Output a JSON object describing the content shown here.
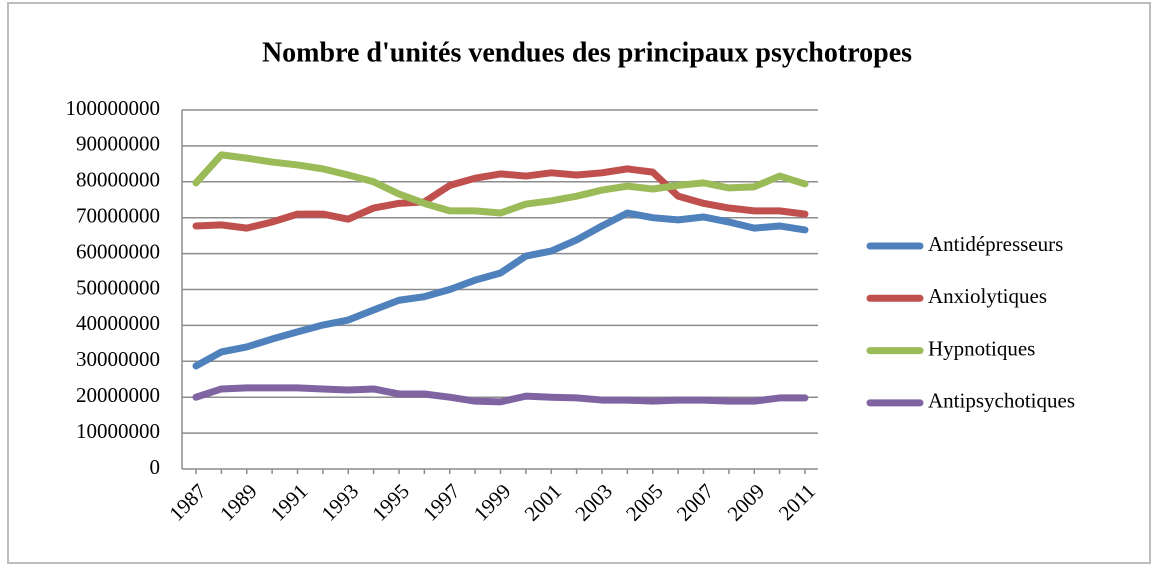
{
  "chart_data": {
    "type": "line",
    "title": "Nombre d'unités vendues des principaux psychotropes",
    "categories": [
      "1987",
      null,
      "1989",
      null,
      "1991",
      null,
      "1993",
      null,
      "1995",
      null,
      "1997",
      null,
      "1999",
      null,
      "2001",
      null,
      "2003",
      null,
      "2005",
      null,
      "2007",
      null,
      "2009",
      null,
      "2011"
    ],
    "ylim": [
      0,
      100000000
    ],
    "yticks": [
      0,
      10000000,
      20000000,
      30000000,
      40000000,
      50000000,
      60000000,
      70000000,
      80000000,
      90000000,
      100000000
    ],
    "grid": true,
    "legend": "right",
    "series": [
      {
        "name": "Antidépresseurs",
        "color": "#4f81bd",
        "values": [
          28700000,
          32600000,
          34000000,
          36200000,
          38200000,
          40100000,
          41500000,
          44300000,
          47000000,
          48000000,
          50000000,
          52600000,
          54600000,
          59300000,
          60700000,
          63800000,
          67700000,
          71300000,
          70000000,
          69400000,
          70200000,
          68800000,
          67100000,
          67700000,
          66600000
        ]
      },
      {
        "name": "Anxiolytiques",
        "color": "#c0504d",
        "values": [
          67700000,
          68000000,
          67100000,
          68800000,
          71000000,
          71000000,
          69600000,
          72700000,
          74000000,
          74400000,
          79000000,
          81000000,
          82200000,
          81600000,
          82500000,
          81900000,
          82500000,
          83600000,
          82700000,
          76000000,
          74000000,
          72700000,
          71900000,
          71900000,
          71000000
        ]
      },
      {
        "name": "Hypnotiques",
        "color": "#9bbb59",
        "values": [
          79700000,
          87500000,
          86600000,
          85500000,
          84700000,
          83600000,
          81900000,
          80000000,
          76600000,
          74000000,
          71900000,
          71900000,
          71300000,
          73800000,
          74700000,
          76000000,
          77700000,
          78800000,
          78000000,
          79000000,
          79700000,
          78300000,
          78600000,
          81600000,
          79400000
        ]
      },
      {
        "name": "Antipsychotiques",
        "color": "#8064a2",
        "values": [
          20000000,
          22300000,
          22600000,
          22600000,
          22600000,
          22300000,
          22000000,
          22300000,
          20900000,
          20900000,
          20000000,
          18900000,
          18700000,
          20300000,
          20000000,
          19800000,
          19200000,
          19200000,
          18900000,
          19200000,
          19200000,
          18900000,
          18900000,
          19800000,
          19800000
        ]
      }
    ]
  }
}
